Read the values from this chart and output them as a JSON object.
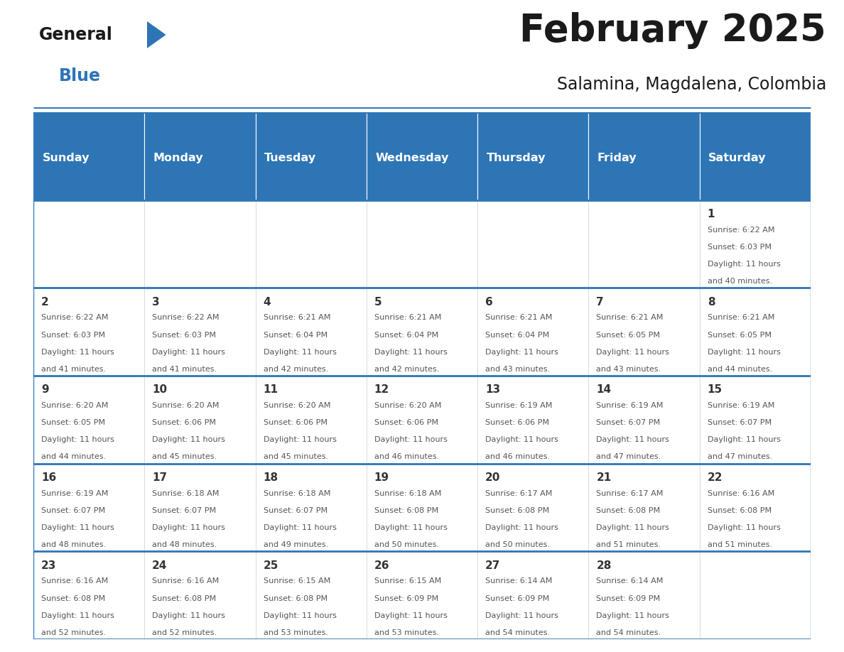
{
  "title": "February 2025",
  "subtitle": "Salamina, Magdalena, Colombia",
  "header_bg": "#2e75b6",
  "header_text": "#ffffff",
  "cell_bg": "#ffffff",
  "separator_color": "#2e75b6",
  "day_number_color": "#333333",
  "text_color": "#555555",
  "title_color": "#1a1a1a",
  "subtitle_color": "#1a1a1a",
  "logo_black": "#1a1a1a",
  "logo_blue": "#2e75b6",
  "days_of_week": [
    "Sunday",
    "Monday",
    "Tuesday",
    "Wednesday",
    "Thursday",
    "Friday",
    "Saturday"
  ],
  "calendar": [
    [
      {
        "day": null,
        "sunrise": null,
        "sunset": null,
        "daylight": null
      },
      {
        "day": null,
        "sunrise": null,
        "sunset": null,
        "daylight": null
      },
      {
        "day": null,
        "sunrise": null,
        "sunset": null,
        "daylight": null
      },
      {
        "day": null,
        "sunrise": null,
        "sunset": null,
        "daylight": null
      },
      {
        "day": null,
        "sunrise": null,
        "sunset": null,
        "daylight": null
      },
      {
        "day": null,
        "sunrise": null,
        "sunset": null,
        "daylight": null
      },
      {
        "day": 1,
        "sunrise": "6:22 AM",
        "sunset": "6:03 PM",
        "daylight": "11 hours and 40 minutes."
      }
    ],
    [
      {
        "day": 2,
        "sunrise": "6:22 AM",
        "sunset": "6:03 PM",
        "daylight": "11 hours and 41 minutes."
      },
      {
        "day": 3,
        "sunrise": "6:22 AM",
        "sunset": "6:03 PM",
        "daylight": "11 hours and 41 minutes."
      },
      {
        "day": 4,
        "sunrise": "6:21 AM",
        "sunset": "6:04 PM",
        "daylight": "11 hours and 42 minutes."
      },
      {
        "day": 5,
        "sunrise": "6:21 AM",
        "sunset": "6:04 PM",
        "daylight": "11 hours and 42 minutes."
      },
      {
        "day": 6,
        "sunrise": "6:21 AM",
        "sunset": "6:04 PM",
        "daylight": "11 hours and 43 minutes."
      },
      {
        "day": 7,
        "sunrise": "6:21 AM",
        "sunset": "6:05 PM",
        "daylight": "11 hours and 43 minutes."
      },
      {
        "day": 8,
        "sunrise": "6:21 AM",
        "sunset": "6:05 PM",
        "daylight": "11 hours and 44 minutes."
      }
    ],
    [
      {
        "day": 9,
        "sunrise": "6:20 AM",
        "sunset": "6:05 PM",
        "daylight": "11 hours and 44 minutes."
      },
      {
        "day": 10,
        "sunrise": "6:20 AM",
        "sunset": "6:06 PM",
        "daylight": "11 hours and 45 minutes."
      },
      {
        "day": 11,
        "sunrise": "6:20 AM",
        "sunset": "6:06 PM",
        "daylight": "11 hours and 45 minutes."
      },
      {
        "day": 12,
        "sunrise": "6:20 AM",
        "sunset": "6:06 PM",
        "daylight": "11 hours and 46 minutes."
      },
      {
        "day": 13,
        "sunrise": "6:19 AM",
        "sunset": "6:06 PM",
        "daylight": "11 hours and 46 minutes."
      },
      {
        "day": 14,
        "sunrise": "6:19 AM",
        "sunset": "6:07 PM",
        "daylight": "11 hours and 47 minutes."
      },
      {
        "day": 15,
        "sunrise": "6:19 AM",
        "sunset": "6:07 PM",
        "daylight": "11 hours and 47 minutes."
      }
    ],
    [
      {
        "day": 16,
        "sunrise": "6:19 AM",
        "sunset": "6:07 PM",
        "daylight": "11 hours and 48 minutes."
      },
      {
        "day": 17,
        "sunrise": "6:18 AM",
        "sunset": "6:07 PM",
        "daylight": "11 hours and 48 minutes."
      },
      {
        "day": 18,
        "sunrise": "6:18 AM",
        "sunset": "6:07 PM",
        "daylight": "11 hours and 49 minutes."
      },
      {
        "day": 19,
        "sunrise": "6:18 AM",
        "sunset": "6:08 PM",
        "daylight": "11 hours and 50 minutes."
      },
      {
        "day": 20,
        "sunrise": "6:17 AM",
        "sunset": "6:08 PM",
        "daylight": "11 hours and 50 minutes."
      },
      {
        "day": 21,
        "sunrise": "6:17 AM",
        "sunset": "6:08 PM",
        "daylight": "11 hours and 51 minutes."
      },
      {
        "day": 22,
        "sunrise": "6:16 AM",
        "sunset": "6:08 PM",
        "daylight": "11 hours and 51 minutes."
      }
    ],
    [
      {
        "day": 23,
        "sunrise": "6:16 AM",
        "sunset": "6:08 PM",
        "daylight": "11 hours and 52 minutes."
      },
      {
        "day": 24,
        "sunrise": "6:16 AM",
        "sunset": "6:08 PM",
        "daylight": "11 hours and 52 minutes."
      },
      {
        "day": 25,
        "sunrise": "6:15 AM",
        "sunset": "6:08 PM",
        "daylight": "11 hours and 53 minutes."
      },
      {
        "day": 26,
        "sunrise": "6:15 AM",
        "sunset": "6:09 PM",
        "daylight": "11 hours and 53 minutes."
      },
      {
        "day": 27,
        "sunrise": "6:14 AM",
        "sunset": "6:09 PM",
        "daylight": "11 hours and 54 minutes."
      },
      {
        "day": 28,
        "sunrise": "6:14 AM",
        "sunset": "6:09 PM",
        "daylight": "11 hours and 54 minutes."
      },
      {
        "day": null,
        "sunrise": null,
        "sunset": null,
        "daylight": null
      }
    ]
  ],
  "title_fontsize": 38,
  "subtitle_fontsize": 17,
  "header_fontsize": 11.5,
  "day_num_fontsize": 11,
  "cell_text_fontsize": 8
}
